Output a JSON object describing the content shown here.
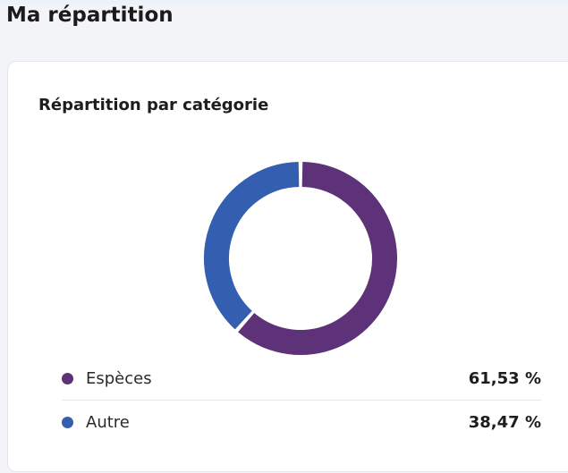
{
  "page": {
    "title": "Ma répartition"
  },
  "chart_data": {
    "type": "pie",
    "title": "Répartition par catégorie",
    "donut": true,
    "series": [
      {
        "name": "Espèces",
        "value": 61.53,
        "value_label": "61,53 %",
        "color": "#5e3278"
      },
      {
        "name": "Autre",
        "value": 38.47,
        "value_label": "38,47 %",
        "color": "#345fb0"
      }
    ],
    "legend_position": "bottom"
  }
}
